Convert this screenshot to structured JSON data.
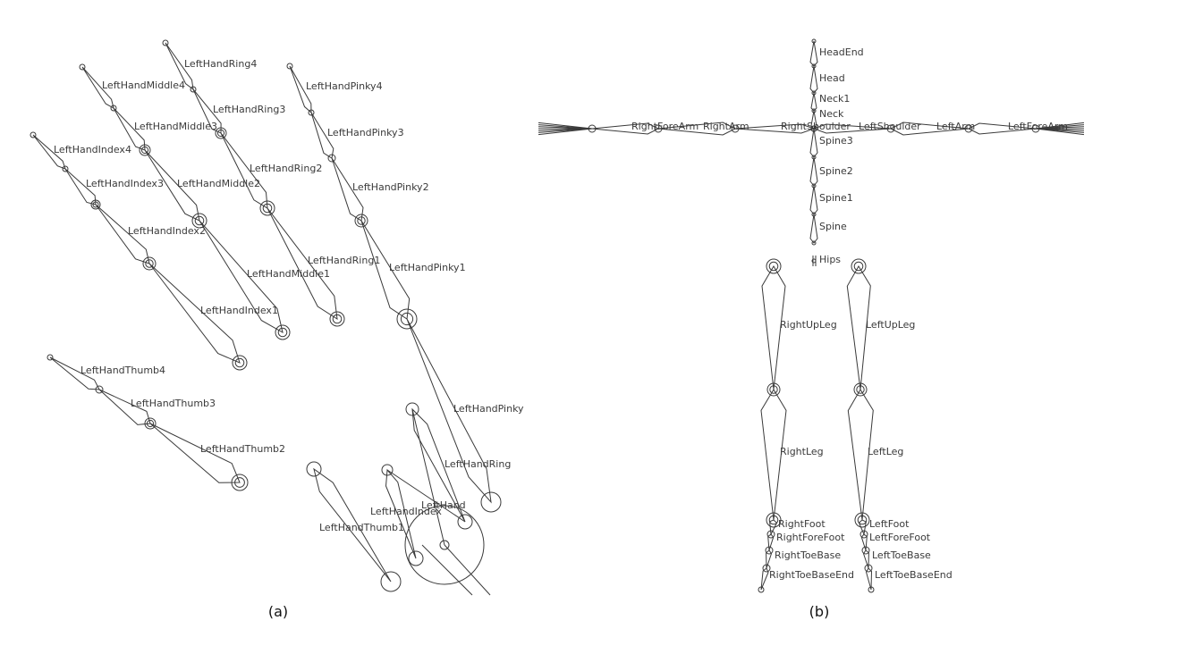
{
  "figure": {
    "panel_a": {
      "caption": "(a)",
      "labels": {
        "ring4": "LeftHandRing4",
        "middle4": "LeftHandMiddle4",
        "pinky4": "LeftHandPinky4",
        "ring3": "LeftHandRing3",
        "middle3": "LeftHandMiddle3",
        "pinky3": "LeftHandPinky3",
        "index4": "LeftHandIndex4",
        "ring2": "LeftHandRing2",
        "index3": "LeftHandIndex3",
        "middle2": "LeftHandMiddle2",
        "pinky2": "LeftHandPinky2",
        "index2": "LeftHandIndex2",
        "ring1": "LeftHandRing1",
        "middle1": "LeftHandMiddle1",
        "pinky1": "LeftHandPinky1",
        "index1": "LeftHandIndex1",
        "thumb4": "LeftHandThumb4",
        "thumb3": "LeftHandThumb3",
        "pinky": "LeftHandPinky",
        "thumb2": "LeftHandThumb2",
        "ring": "LeftHandRing",
        "hand": "LeftHand",
        "index": "LeftHandIndex",
        "thumb1": "LeftHandThumb1"
      }
    },
    "panel_b": {
      "caption": "(b)",
      "labels": {
        "headend": "HeadEnd",
        "head": "Head",
        "neck1": "Neck1",
        "neck": "Neck",
        "rightforearm": "RightForeArm",
        "rightarm": "RightArm",
        "rightshoulder": "RightShoulder",
        "leftshoulder": "LeftShoulder",
        "leftarm": "LeftArm",
        "leftforearm": "LeftForeArm",
        "spine3": "Spine3",
        "spine2": "Spine2",
        "spine1": "Spine1",
        "spine": "Spine",
        "hips": "Hips",
        "rightupleg": "RightUpLeg",
        "leftupleg": "LeftUpLeg",
        "rightleg": "RightLeg",
        "leftleg": "LeftLeg",
        "rightfoot": "RightFoot",
        "leftfoot": "LeftFoot",
        "rightforefoot": "RightForeFoot",
        "leftforefoot": "LeftForeFoot",
        "righttoebase": "RightToeBase",
        "lefttoebase": "LeftToeBase",
        "righttoebaseend": "RightToeBaseEnd",
        "lefttoebaseend": "LeftToeBaseEnd"
      }
    }
  }
}
